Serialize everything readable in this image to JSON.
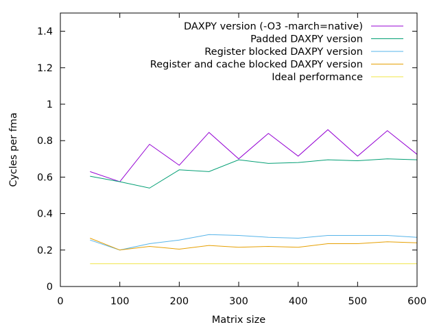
{
  "chart_data": {
    "type": "line",
    "title": "",
    "xlabel": "Matrix size",
    "ylabel": "Cycles per fma",
    "xlim": [
      0,
      600
    ],
    "ylim": [
      0,
      1.5
    ],
    "xticks": [
      0,
      100,
      200,
      300,
      400,
      500,
      600
    ],
    "yticks": [
      0,
      0.2,
      0.4,
      0.6,
      0.8,
      1,
      1.2,
      1.4
    ],
    "xtick_labels": [
      "0",
      "100",
      "200",
      "300",
      "400",
      "500",
      "600"
    ],
    "ytick_labels": [
      "0",
      "0.2",
      "0.4",
      "0.6",
      "0.8",
      "1",
      "1.2",
      "1.4"
    ],
    "grid": false,
    "legend_position": "top-right",
    "x": [
      50,
      100,
      150,
      200,
      250,
      300,
      350,
      400,
      450,
      500,
      550,
      600
    ],
    "series": [
      {
        "name": "DAXPY version (-O3 -march=native)",
        "color": "#9400d3",
        "values": [
          0.63,
          0.575,
          0.78,
          0.665,
          0.845,
          0.7,
          0.84,
          0.715,
          0.86,
          0.715,
          0.855,
          0.725
        ]
      },
      {
        "name": "Padded DAXPY version",
        "color": "#009e73",
        "values": [
          0.605,
          0.575,
          0.54,
          0.64,
          0.63,
          0.695,
          0.675,
          0.68,
          0.695,
          0.69,
          0.7,
          0.695
        ]
      },
      {
        "name": "Register blocked DAXPY version",
        "color": "#56b4e9",
        "values": [
          0.255,
          0.2,
          0.235,
          0.255,
          0.285,
          0.28,
          0.27,
          0.265,
          0.28,
          0.28,
          0.28,
          0.27
        ]
      },
      {
        "name": "Register and cache blocked DAXPY version",
        "color": "#e69f00",
        "values": [
          0.265,
          0.2,
          0.22,
          0.205,
          0.225,
          0.215,
          0.22,
          0.215,
          0.235,
          0.235,
          0.245,
          0.24
        ]
      },
      {
        "name": "Ideal performance",
        "color": "#f0e442",
        "values": [
          0.125,
          0.125,
          0.125,
          0.125,
          0.125,
          0.125,
          0.125,
          0.125,
          0.125,
          0.125,
          0.125,
          0.125
        ]
      }
    ]
  }
}
